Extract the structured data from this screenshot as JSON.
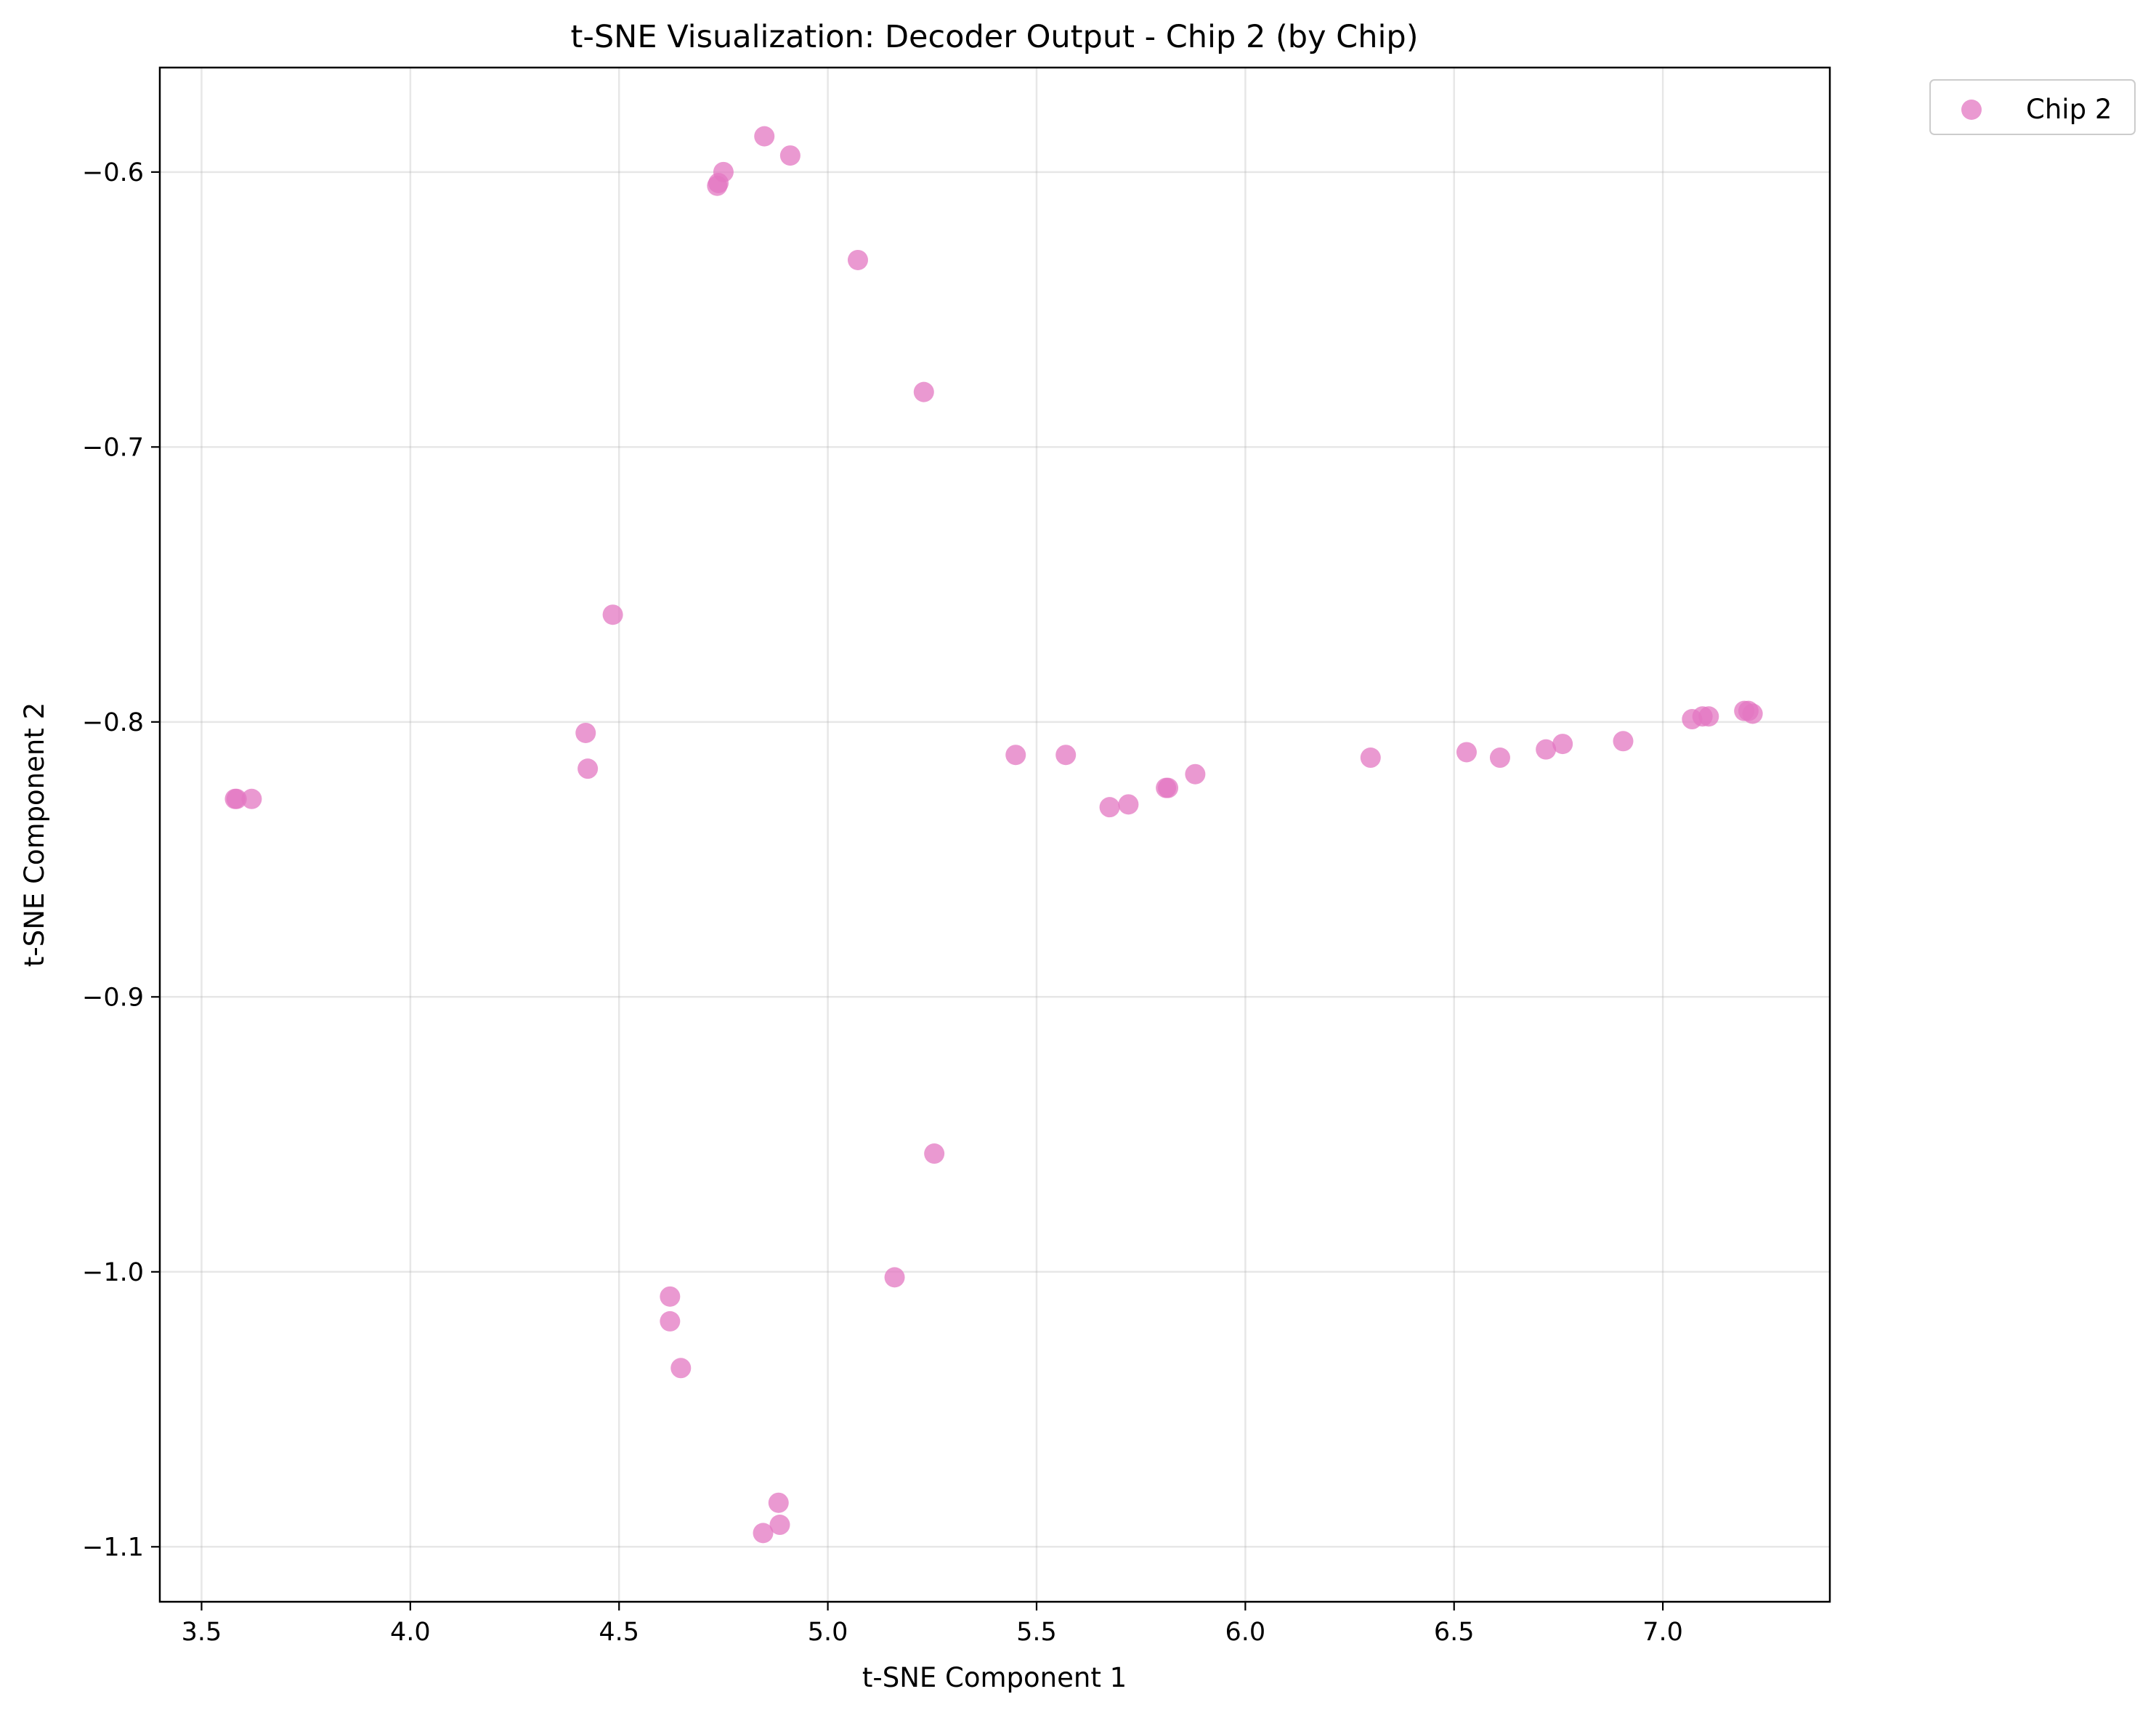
{
  "chart_data": {
    "type": "scatter",
    "title": "t-SNE Visualization: Decoder Output - Chip 2 (by Chip)",
    "xlabel": "t-SNE Component 1",
    "ylabel": "t-SNE Component 2",
    "xlim": [
      3.4,
      7.4
    ],
    "ylim": [
      -1.12,
      -0.562
    ],
    "xticks": [
      3.5,
      4.0,
      4.5,
      5.0,
      5.5,
      6.0,
      6.5,
      7.0
    ],
    "xtick_labels": [
      "3.5",
      "4.0",
      "4.5",
      "5.0",
      "5.5",
      "6.0",
      "6.5",
      "7.0"
    ],
    "yticks": [
      -0.6,
      -0.7,
      -0.8,
      -0.9,
      -1.0,
      -1.1
    ],
    "ytick_labels": [
      "−0.6",
      "−0.7",
      "−0.8",
      "−0.9",
      "−1.0",
      "−1.1"
    ],
    "grid": true,
    "legend": "upper-right-outside",
    "series": [
      {
        "name": "Chip 2",
        "color": "#e377c2",
        "alpha": 0.75,
        "points": [
          [
            3.58,
            -0.828
          ],
          [
            3.584,
            -0.828
          ],
          [
            3.62,
            -0.828
          ],
          [
            4.42,
            -0.804
          ],
          [
            4.425,
            -0.817
          ],
          [
            4.485,
            -0.761
          ],
          [
            4.735,
            -0.605
          ],
          [
            4.738,
            -0.604
          ],
          [
            4.75,
            -0.6
          ],
          [
            4.848,
            -0.587
          ],
          [
            4.91,
            -0.594
          ],
          [
            5.072,
            -0.632
          ],
          [
            5.23,
            -0.68
          ],
          [
            5.45,
            -0.812
          ],
          [
            5.57,
            -0.812
          ],
          [
            5.675,
            -0.831
          ],
          [
            5.72,
            -0.83
          ],
          [
            5.81,
            -0.824
          ],
          [
            5.815,
            -0.824
          ],
          [
            5.88,
            -0.819
          ],
          [
            6.3,
            -0.813
          ],
          [
            6.53,
            -0.811
          ],
          [
            6.61,
            -0.813
          ],
          [
            6.72,
            -0.81
          ],
          [
            6.76,
            -0.808
          ],
          [
            6.905,
            -0.807
          ],
          [
            7.07,
            -0.799
          ],
          [
            7.095,
            -0.798
          ],
          [
            7.11,
            -0.798
          ],
          [
            7.195,
            -0.796
          ],
          [
            7.205,
            -0.796
          ],
          [
            7.215,
            -0.797
          ],
          [
            5.255,
            -0.957
          ],
          [
            5.16,
            -1.002
          ],
          [
            4.622,
            -1.009
          ],
          [
            4.622,
            -1.018
          ],
          [
            4.648,
            -1.035
          ],
          [
            4.882,
            -1.084
          ],
          [
            4.885,
            -1.092
          ],
          [
            4.845,
            -1.095
          ]
        ]
      }
    ]
  }
}
